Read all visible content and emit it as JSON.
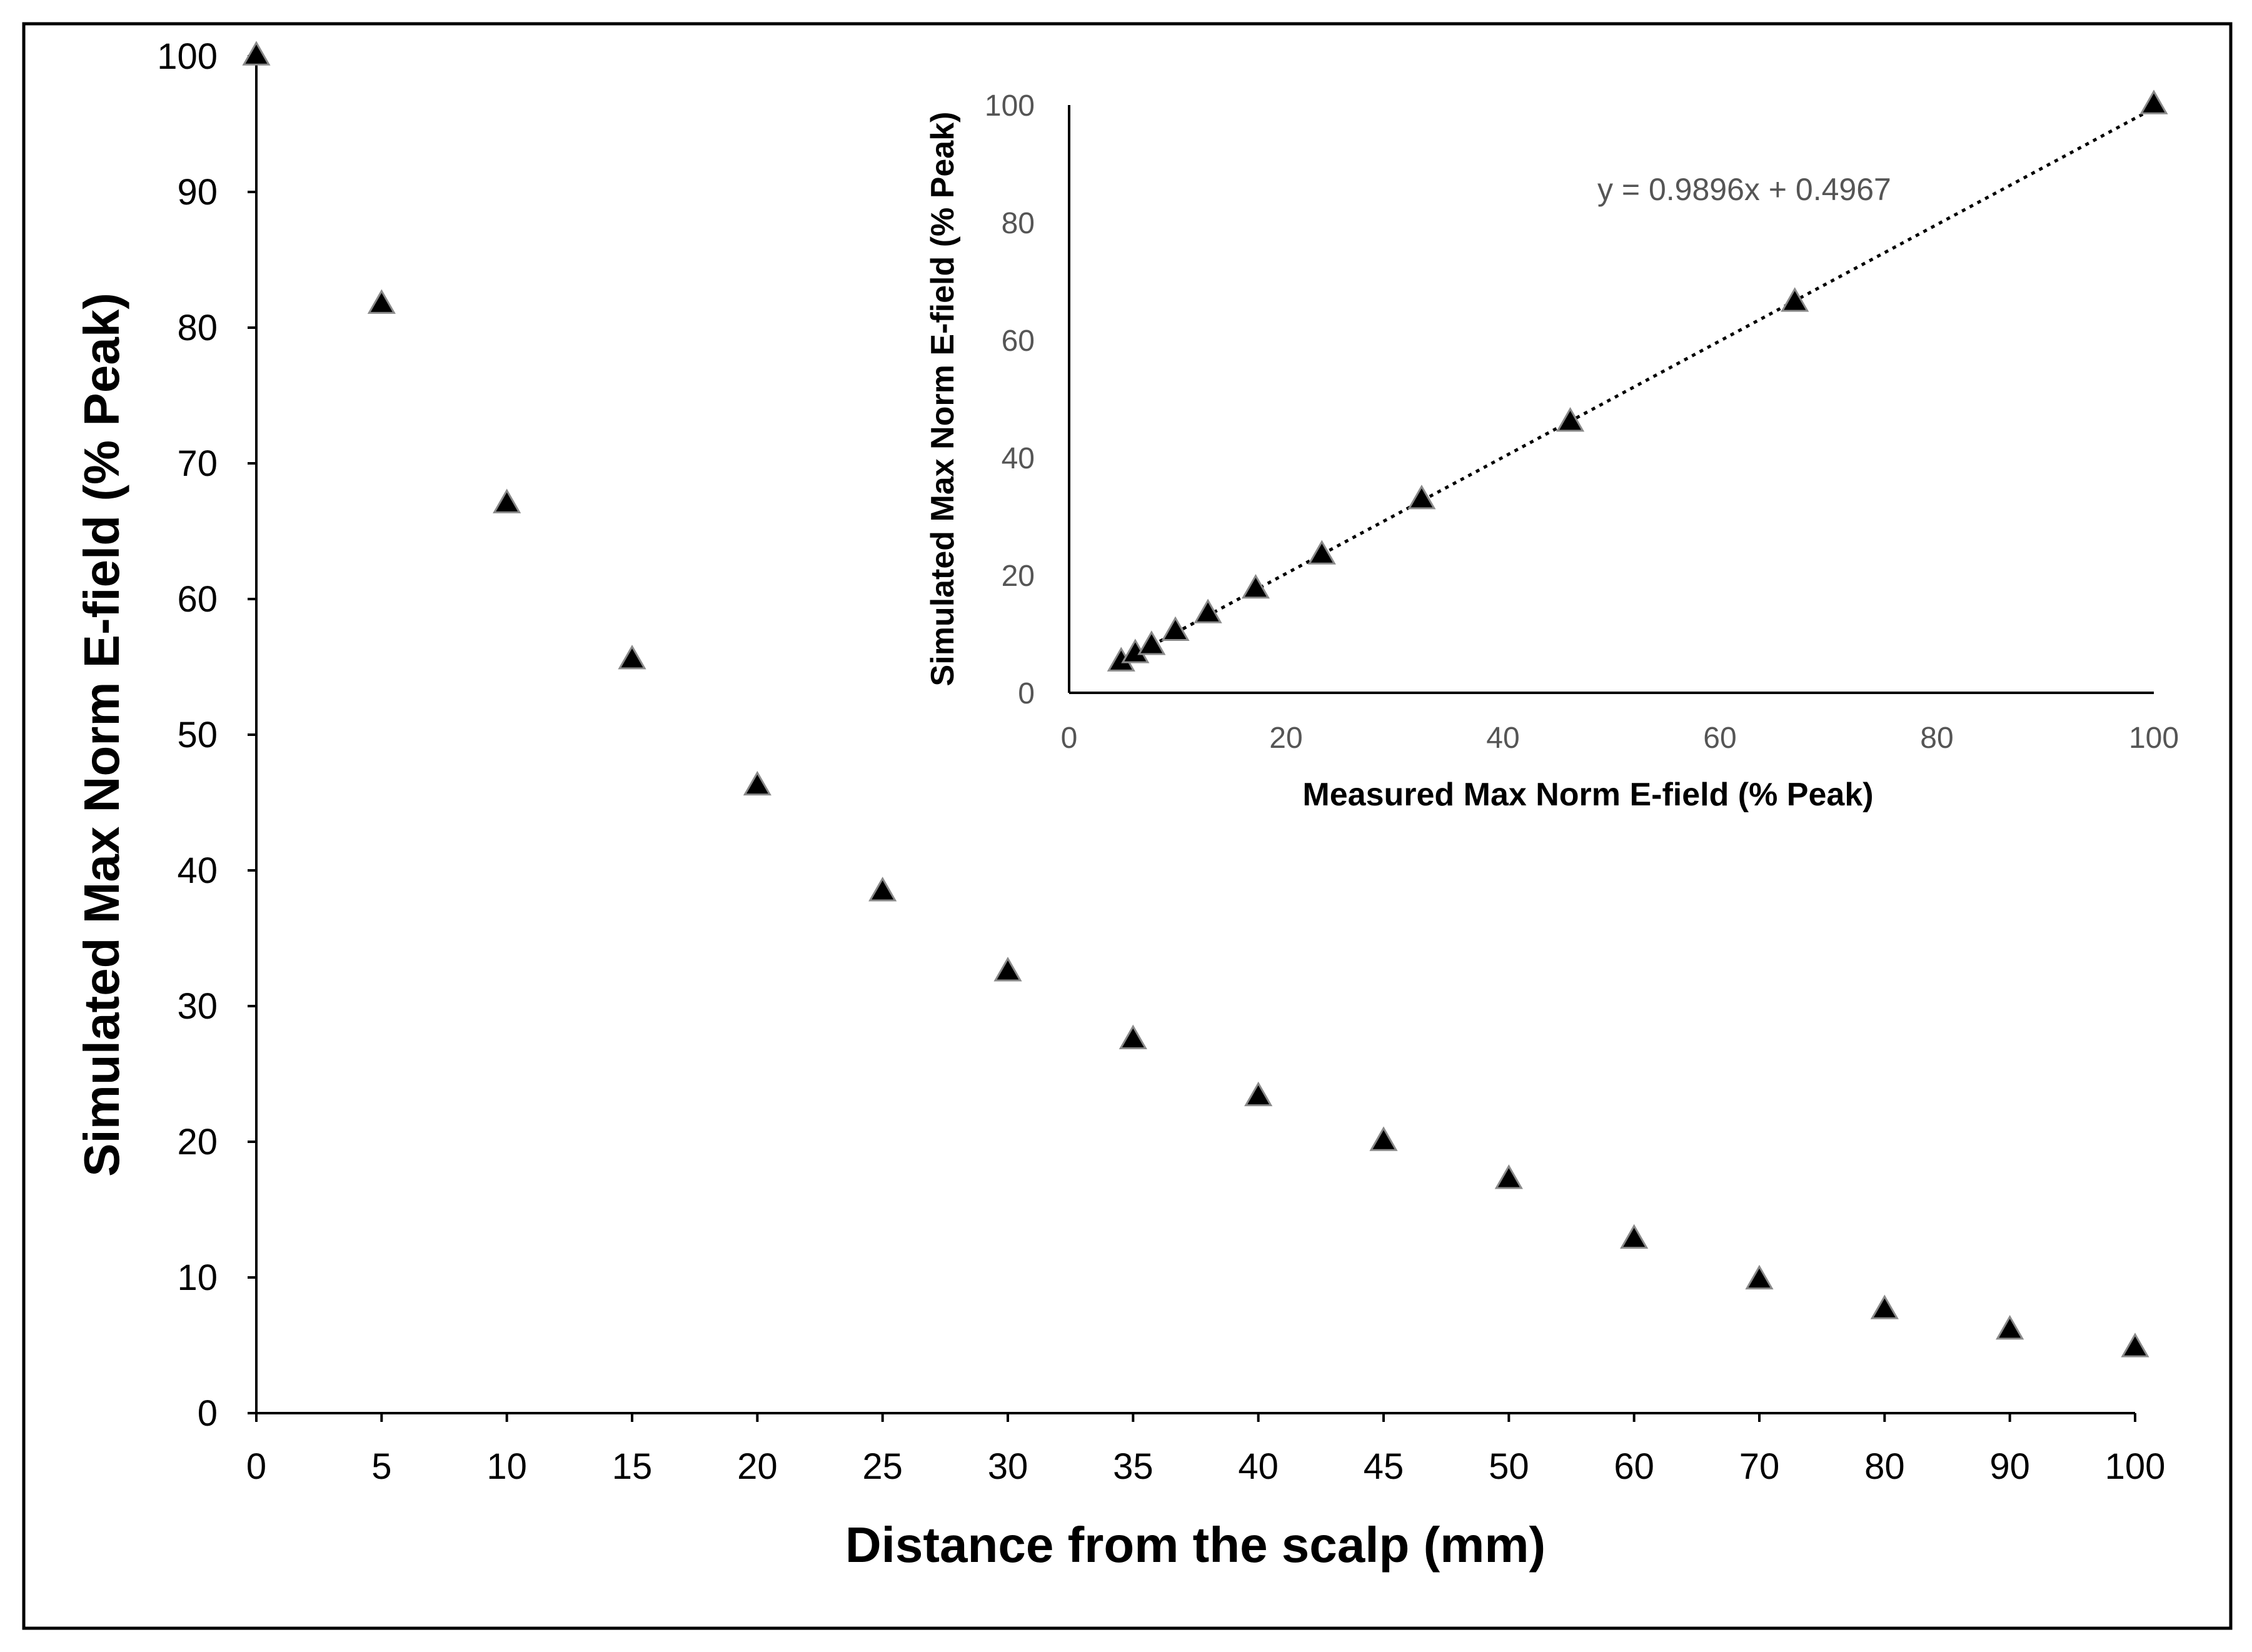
{
  "chart_data": [
    {
      "id": "main",
      "type": "scatter",
      "marker": "triangle",
      "ylabel": "Simulated Max Norm E-field (% Peak)",
      "xlabel": "Distance from the scalp (mm)",
      "categories": [
        "0",
        "5",
        "10",
        "15",
        "20",
        "25",
        "30",
        "35",
        "40",
        "45",
        "50",
        "60",
        "70",
        "80",
        "90",
        "100"
      ],
      "values": [
        100,
        81.7,
        67,
        55.5,
        46.2,
        38.4,
        32.5,
        27.5,
        23.3,
        20,
        17.2,
        12.8,
        9.8,
        7.6,
        6.1,
        4.8
      ],
      "yticks": [
        "0",
        "10",
        "20",
        "30",
        "40",
        "50",
        "60",
        "70",
        "80",
        "90",
        "100"
      ],
      "ylim": [
        0,
        100
      ]
    },
    {
      "id": "inset",
      "type": "scatter",
      "marker": "triangle",
      "xlabel": "Measured Max Norm E-field (% Peak)",
      "ylabel": "Simulated Max Norm E-field (% Peak)",
      "x": [
        4.8,
        6.1,
        7.6,
        9.8,
        12.8,
        17.2,
        23.3,
        32.5,
        46.2,
        66.9,
        100
      ],
      "y": [
        5.2,
        6.6,
        8.0,
        10.4,
        13.4,
        17.6,
        23.4,
        32.8,
        46.0,
        66.4,
        100
      ],
      "xticks": [
        "0",
        "20",
        "40",
        "60",
        "80",
        "100"
      ],
      "yticks": [
        "0",
        "20",
        "40",
        "60",
        "80",
        "100"
      ],
      "xlim": [
        0,
        100
      ],
      "ylim": [
        0,
        100
      ],
      "trendline": {
        "slope": 0.9896,
        "intercept": 0.4967,
        "style": "dotted",
        "equation": "y = 0.9896x + 0.4967"
      }
    }
  ]
}
